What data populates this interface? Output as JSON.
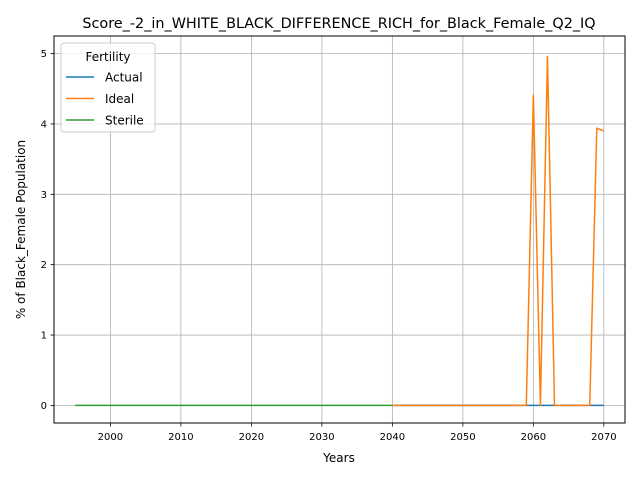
{
  "chart_data": {
    "type": "line",
    "title": "Score_-2_in_WHITE_BLACK_DIFFERENCE_RICH_for_Black_Female_Q2_IQ",
    "xlabel": "Years",
    "ylabel": "% of Black_Female Population",
    "xlim": [
      1992,
      2073
    ],
    "ylim": [
      -0.25,
      5.25
    ],
    "x_ticks": [
      2000,
      2010,
      2020,
      2030,
      2040,
      2050,
      2060,
      2070
    ],
    "y_ticks": [
      0,
      1,
      2,
      3,
      4,
      5
    ],
    "grid": true,
    "legend": {
      "title": "Fertility",
      "placement": "top-left"
    },
    "series": [
      {
        "name": "Actual",
        "color": "#1f77b4",
        "x": [
          2040,
          2045,
          2050,
          2055,
          2059,
          2060,
          2061,
          2062,
          2063,
          2065,
          2068,
          2069,
          2070
        ],
        "y": [
          0,
          0,
          0,
          0,
          0,
          0,
          0,
          0,
          0,
          0,
          0,
          0,
          0
        ]
      },
      {
        "name": "Ideal",
        "color": "#ff7f0e",
        "x": [
          2040,
          2045,
          2050,
          2055,
          2059,
          2060,
          2061,
          2062,
          2063,
          2064,
          2065,
          2066,
          2067,
          2068,
          2069,
          2070
        ],
        "y": [
          0,
          0,
          0,
          0,
          0,
          4.41,
          0,
          4.96,
          0,
          0,
          0,
          0,
          0,
          0,
          3.94,
          3.9
        ]
      },
      {
        "name": "Sterile",
        "color": "#2ca02c",
        "x": [
          1995,
          2000,
          2005,
          2010,
          2015,
          2020,
          2025,
          2030,
          2035,
          2040
        ],
        "y": [
          0,
          0,
          0,
          0,
          0,
          0,
          0,
          0,
          0,
          0
        ]
      }
    ]
  }
}
